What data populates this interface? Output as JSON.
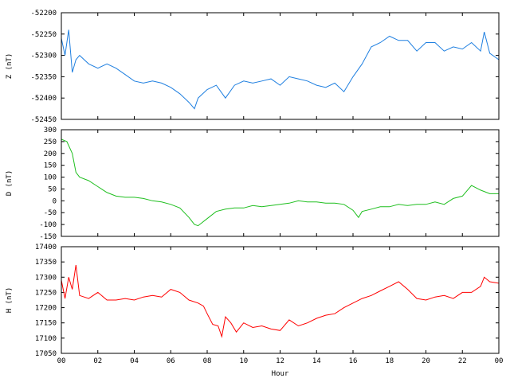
{
  "chart_data": [
    {
      "type": "line",
      "ylabel": "Z (nT)",
      "ylim": [
        -52450,
        -52200
      ],
      "yticks": [
        "-52200",
        "-52250",
        "-52300",
        "-52350",
        "-52400",
        "-52450"
      ],
      "xlim": [
        0,
        24
      ],
      "color": "#1e7fe0",
      "x": [
        0,
        0.2,
        0.4,
        0.6,
        0.8,
        1,
        1.5,
        2,
        2.5,
        3,
        3.5,
        4,
        4.5,
        5,
        5.5,
        6,
        6.5,
        7,
        7.3,
        7.5,
        8,
        8.5,
        9,
        9.5,
        10,
        10.5,
        11,
        11.5,
        12,
        12.5,
        13,
        13.5,
        14,
        14.5,
        15,
        15.5,
        16,
        16.5,
        17,
        17.5,
        18,
        18.5,
        19,
        19.5,
        20,
        20.5,
        21,
        21.5,
        22,
        22.5,
        23,
        23.2,
        23.5,
        24
      ],
      "y": [
        -52260,
        -52300,
        -52240,
        -52340,
        -52310,
        -52300,
        -52320,
        -52330,
        -52320,
        -52330,
        -52345,
        -52360,
        -52365,
        -52360,
        -52365,
        -52375,
        -52390,
        -52410,
        -52425,
        -52400,
        -52380,
        -52370,
        -52400,
        -52370,
        -52360,
        -52365,
        -52360,
        -52355,
        -52370,
        -52350,
        -52355,
        -52360,
        -52370,
        -52375,
        -52365,
        -52385,
        -52350,
        -52320,
        -52280,
        -52270,
        -52255,
        -52265,
        -52265,
        -52290,
        -52270,
        -52270,
        -52290,
        -52280,
        -52285,
        -52270,
        -52290,
        -52245,
        -52295,
        -52310
      ]
    },
    {
      "type": "line",
      "ylabel": "D (nT)",
      "ylim": [
        -150,
        300
      ],
      "yticks": [
        "300",
        "250",
        "200",
        "150",
        "100",
        "50",
        "0",
        "-50",
        "-100",
        "-150"
      ],
      "xlim": [
        0,
        24
      ],
      "color": "#1fbf1f",
      "x": [
        0,
        0.3,
        0.6,
        0.8,
        1,
        1.5,
        2,
        2.5,
        3,
        3.5,
        4,
        4.5,
        5,
        5.5,
        6,
        6.5,
        7,
        7.3,
        7.5,
        8,
        8.5,
        9,
        9.5,
        10,
        10.5,
        11,
        11.5,
        12,
        12.5,
        13,
        13.5,
        14,
        14.5,
        15,
        15.5,
        16,
        16.3,
        16.5,
        17,
        17.5,
        18,
        18.5,
        19,
        19.5,
        20,
        20.5,
        21,
        21.5,
        22,
        22.5,
        23,
        23.5,
        24
      ],
      "y": [
        260,
        250,
        200,
        120,
        100,
        85,
        60,
        35,
        20,
        15,
        15,
        10,
        0,
        -5,
        -15,
        -30,
        -70,
        -100,
        -105,
        -75,
        -45,
        -35,
        -30,
        -30,
        -20,
        -25,
        -20,
        -15,
        -10,
        0,
        -5,
        -5,
        -10,
        -10,
        -15,
        -40,
        -70,
        -45,
        -35,
        -25,
        -25,
        -15,
        -20,
        -15,
        -15,
        -5,
        -15,
        10,
        20,
        65,
        45,
        30,
        30
      ]
    },
    {
      "type": "line",
      "ylabel": "H (nT)",
      "xlabel": "Hour",
      "ylim": [
        17050,
        17400
      ],
      "yticks": [
        "17400",
        "17350",
        "17300",
        "17250",
        "17200",
        "17150",
        "17100",
        "17050"
      ],
      "xlim": [
        0,
        24
      ],
      "xticks": [
        "00",
        "02",
        "04",
        "06",
        "08",
        "10",
        "12",
        "14",
        "16",
        "18",
        "20",
        "22",
        "00"
      ],
      "color": "#ff0000",
      "x": [
        0,
        0.2,
        0.4,
        0.6,
        0.8,
        1,
        1.5,
        2,
        2.5,
        3,
        3.5,
        4,
        4.5,
        5,
        5.5,
        6,
        6.5,
        7,
        7.5,
        7.8,
        8,
        8.3,
        8.6,
        8.8,
        9,
        9.3,
        9.6,
        10,
        10.5,
        11,
        11.5,
        12,
        12.5,
        13,
        13.5,
        14,
        14.5,
        15,
        15.5,
        16,
        16.5,
        17,
        17.5,
        18,
        18.5,
        19,
        19.5,
        20,
        20.5,
        21,
        21.5,
        22,
        22.5,
        23,
        23.2,
        23.5,
        24
      ],
      "y": [
        17290,
        17230,
        17300,
        17260,
        17340,
        17240,
        17230,
        17250,
        17225,
        17225,
        17230,
        17225,
        17235,
        17240,
        17235,
        17260,
        17250,
        17225,
        17215,
        17205,
        17180,
        17145,
        17140,
        17105,
        17170,
        17150,
        17120,
        17150,
        17135,
        17140,
        17130,
        17125,
        17160,
        17140,
        17150,
        17165,
        17175,
        17180,
        17200,
        17215,
        17230,
        17240,
        17255,
        17270,
        17285,
        17260,
        17230,
        17225,
        17235,
        17240,
        17230,
        17250,
        17250,
        17270,
        17300,
        17285,
        17280
      ]
    }
  ]
}
